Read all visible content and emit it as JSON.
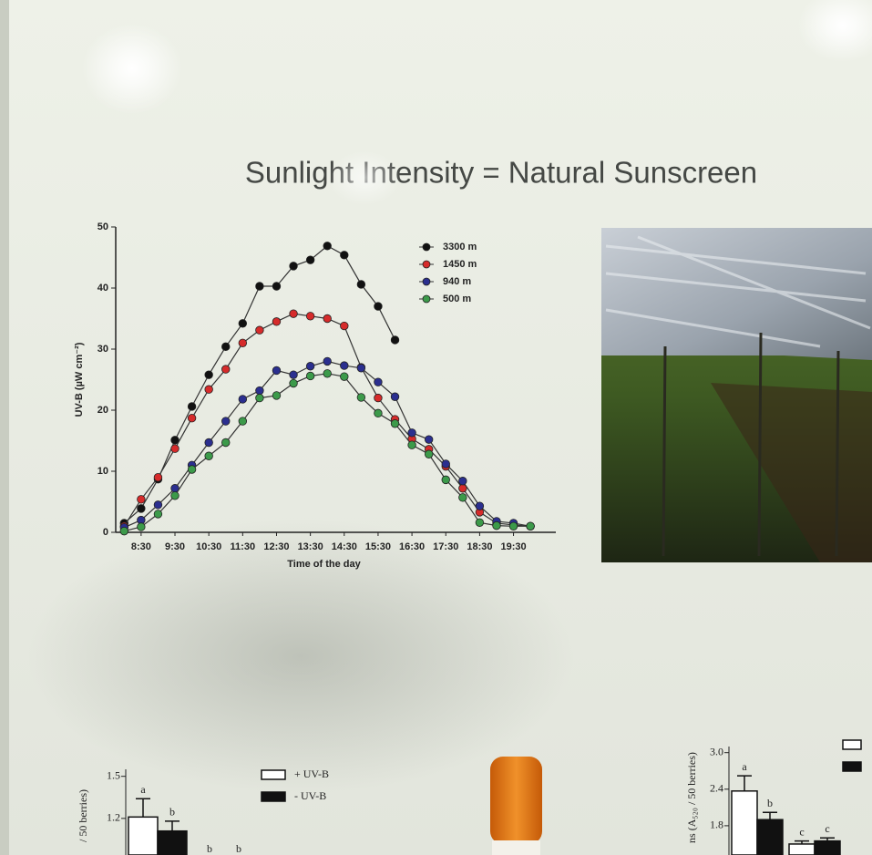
{
  "title": "Sunlight Intensity = Natural Sunscreen",
  "chart_data": [
    {
      "type": "line",
      "ylabel": "UV-B (µW cm⁻²)",
      "xlabel": "Time of the day",
      "x": [
        8,
        8.5,
        9,
        9.5,
        10,
        10.5,
        11,
        11.5,
        12,
        12.5,
        13,
        13.5,
        14,
        14.5,
        15,
        15.5,
        16,
        16.5,
        17,
        17.5,
        18,
        18.5,
        19,
        19.5,
        20
      ],
      "series": [
        {
          "name": "3300 m",
          "color": "#111111",
          "values": [
            1.5,
            3.9,
            8.7,
            15.1,
            20.6,
            25.8,
            30.4,
            34.2,
            40.3,
            40.3,
            43.6,
            44.6,
            46.9,
            45.4,
            40.6,
            37.0,
            31.5,
            null,
            null,
            null,
            null,
            null,
            null,
            null,
            null
          ]
        },
        {
          "name": "1450 m",
          "color": "#d62b2b",
          "values": [
            1.0,
            5.4,
            9.0,
            13.7,
            18.7,
            23.4,
            26.7,
            31.0,
            33.1,
            34.5,
            35.8,
            35.4,
            35.0,
            33.8,
            27.0,
            22.0,
            18.5,
            15.3,
            13.6,
            10.8,
            7.2,
            3.3,
            1.5,
            1.2,
            1.0
          ]
        },
        {
          "name": "940 m",
          "color": "#2b2f8f",
          "values": [
            0.8,
            2.0,
            4.5,
            7.2,
            11.0,
            14.7,
            18.2,
            21.8,
            23.2,
            26.5,
            25.8,
            27.2,
            28.0,
            27.3,
            26.9,
            24.6,
            22.2,
            16.3,
            15.2,
            11.2,
            8.4,
            4.3,
            1.8,
            1.5,
            1.0
          ]
        },
        {
          "name": "500 m",
          "color": "#3c9a4a",
          "values": [
            0.2,
            0.9,
            3.0,
            6.0,
            10.3,
            12.5,
            14.7,
            18.2,
            22.0,
            22.4,
            24.4,
            25.6,
            26.0,
            25.5,
            22.1,
            19.5,
            17.8,
            14.3,
            12.8,
            8.6,
            5.7,
            1.6,
            1.1,
            1.0,
            1.0
          ]
        }
      ],
      "xlim": [
        7.75,
        20.75
      ],
      "xticks": [
        {
          "value": 8.5,
          "label": "8:30"
        },
        {
          "value": 9.5,
          "label": "9:30"
        },
        {
          "value": 10.5,
          "label": "10:30"
        },
        {
          "value": 11.5,
          "label": "11:30"
        },
        {
          "value": 12.5,
          "label": "12:30"
        },
        {
          "value": 13.5,
          "label": "13:30"
        },
        {
          "value": 14.5,
          "label": "14:30"
        },
        {
          "value": 15.5,
          "label": "15:30"
        },
        {
          "value": 16.5,
          "label": "16:30"
        },
        {
          "value": 17.5,
          "label": "17:30"
        },
        {
          "value": 18.5,
          "label": "18:30"
        },
        {
          "value": 19.5,
          "label": "19:30"
        }
      ],
      "ylim": [
        0,
        50
      ],
      "yticks": [
        0,
        10,
        20,
        30,
        40,
        50
      ]
    },
    {
      "type": "bar",
      "ylabel": "/ 50 berries)",
      "categories": [
        null,
        null
      ],
      "series": [
        {
          "name": "+ UV-B",
          "color": "#ffffff",
          "values": [
            1.21,
            null
          ],
          "errors": [
            0.13,
            null
          ]
        },
        {
          "name": "- UV-B",
          "color": "#111111",
          "values": [
            1.11,
            null
          ],
          "errors": [
            0.07,
            null
          ]
        }
      ],
      "annotations": [
        "a",
        "b",
        "b",
        "b"
      ],
      "ylim": [
        0.9,
        1.55
      ],
      "yticks": [
        1.5,
        1.2
      ]
    },
    {
      "type": "bar",
      "ylabel": "ns (A₅₂₀ / 50 berries)",
      "categories": [
        null,
        null
      ],
      "series": [
        {
          "color": "#ffffff",
          "values": [
            2.37,
            1.5
          ],
          "errors": [
            0.25,
            0.05
          ]
        },
        {
          "color": "#111111",
          "values": [
            1.9,
            1.55
          ],
          "errors": [
            0.12,
            0.05
          ]
        }
      ],
      "annotations": [
        "a",
        "b",
        "c",
        "c"
      ],
      "ylim": [
        1.2,
        3.1
      ],
      "yticks": [
        {
          "value": 3,
          "label": "3.0"
        },
        2.4,
        1.8
      ]
    }
  ]
}
